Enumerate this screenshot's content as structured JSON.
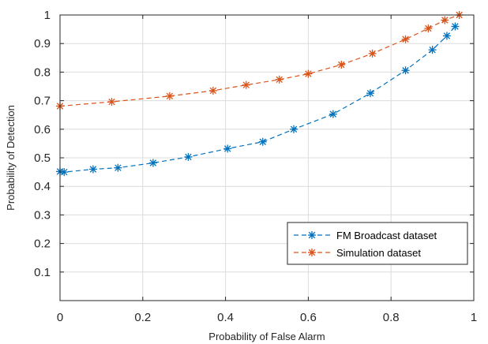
{
  "chart_data": {
    "type": "line",
    "title": "",
    "xlabel": "Probability of False Alarm",
    "ylabel": "Probability of Detection",
    "xlim": [
      0,
      1
    ],
    "ylim": [
      0,
      1
    ],
    "x_ticks": [
      "0",
      "0.2",
      "0.4",
      "0.6",
      "0.8",
      "1"
    ],
    "y_ticks": [
      "0.1",
      "0.2",
      "0.3",
      "0.4",
      "0.5",
      "0.6",
      "0.7",
      "0.8",
      "0.9",
      "1"
    ],
    "grid": true,
    "legend_position": "bottom-right",
    "line_style": "dashed",
    "marker": "asterisk",
    "series": [
      {
        "name": "FM Broadcast dataset",
        "color": "#0072BD",
        "points": [
          {
            "x": 0.0,
            "y": 0.452
          },
          {
            "x": 0.01,
            "y": 0.45
          },
          {
            "x": 0.08,
            "y": 0.46
          },
          {
            "x": 0.14,
            "y": 0.465
          },
          {
            "x": 0.225,
            "y": 0.482
          },
          {
            "x": 0.31,
            "y": 0.503
          },
          {
            "x": 0.405,
            "y": 0.532
          },
          {
            "x": 0.49,
            "y": 0.556
          },
          {
            "x": 0.565,
            "y": 0.6
          },
          {
            "x": 0.66,
            "y": 0.653
          },
          {
            "x": 0.75,
            "y": 0.726
          },
          {
            "x": 0.835,
            "y": 0.806
          },
          {
            "x": 0.9,
            "y": 0.878
          },
          {
            "x": 0.935,
            "y": 0.927
          },
          {
            "x": 0.955,
            "y": 0.96
          }
        ]
      },
      {
        "name": "Simulation dataset",
        "color": "#D95319",
        "points": [
          {
            "x": 0.0,
            "y": 0.681
          },
          {
            "x": 0.125,
            "y": 0.696
          },
          {
            "x": 0.265,
            "y": 0.716
          },
          {
            "x": 0.37,
            "y": 0.735
          },
          {
            "x": 0.45,
            "y": 0.755
          },
          {
            "x": 0.53,
            "y": 0.774
          },
          {
            "x": 0.6,
            "y": 0.794
          },
          {
            "x": 0.68,
            "y": 0.826
          },
          {
            "x": 0.755,
            "y": 0.865
          },
          {
            "x": 0.835,
            "y": 0.915
          },
          {
            "x": 0.89,
            "y": 0.953
          },
          {
            "x": 0.93,
            "y": 0.982
          },
          {
            "x": 0.965,
            "y": 1.0
          }
        ]
      }
    ]
  }
}
